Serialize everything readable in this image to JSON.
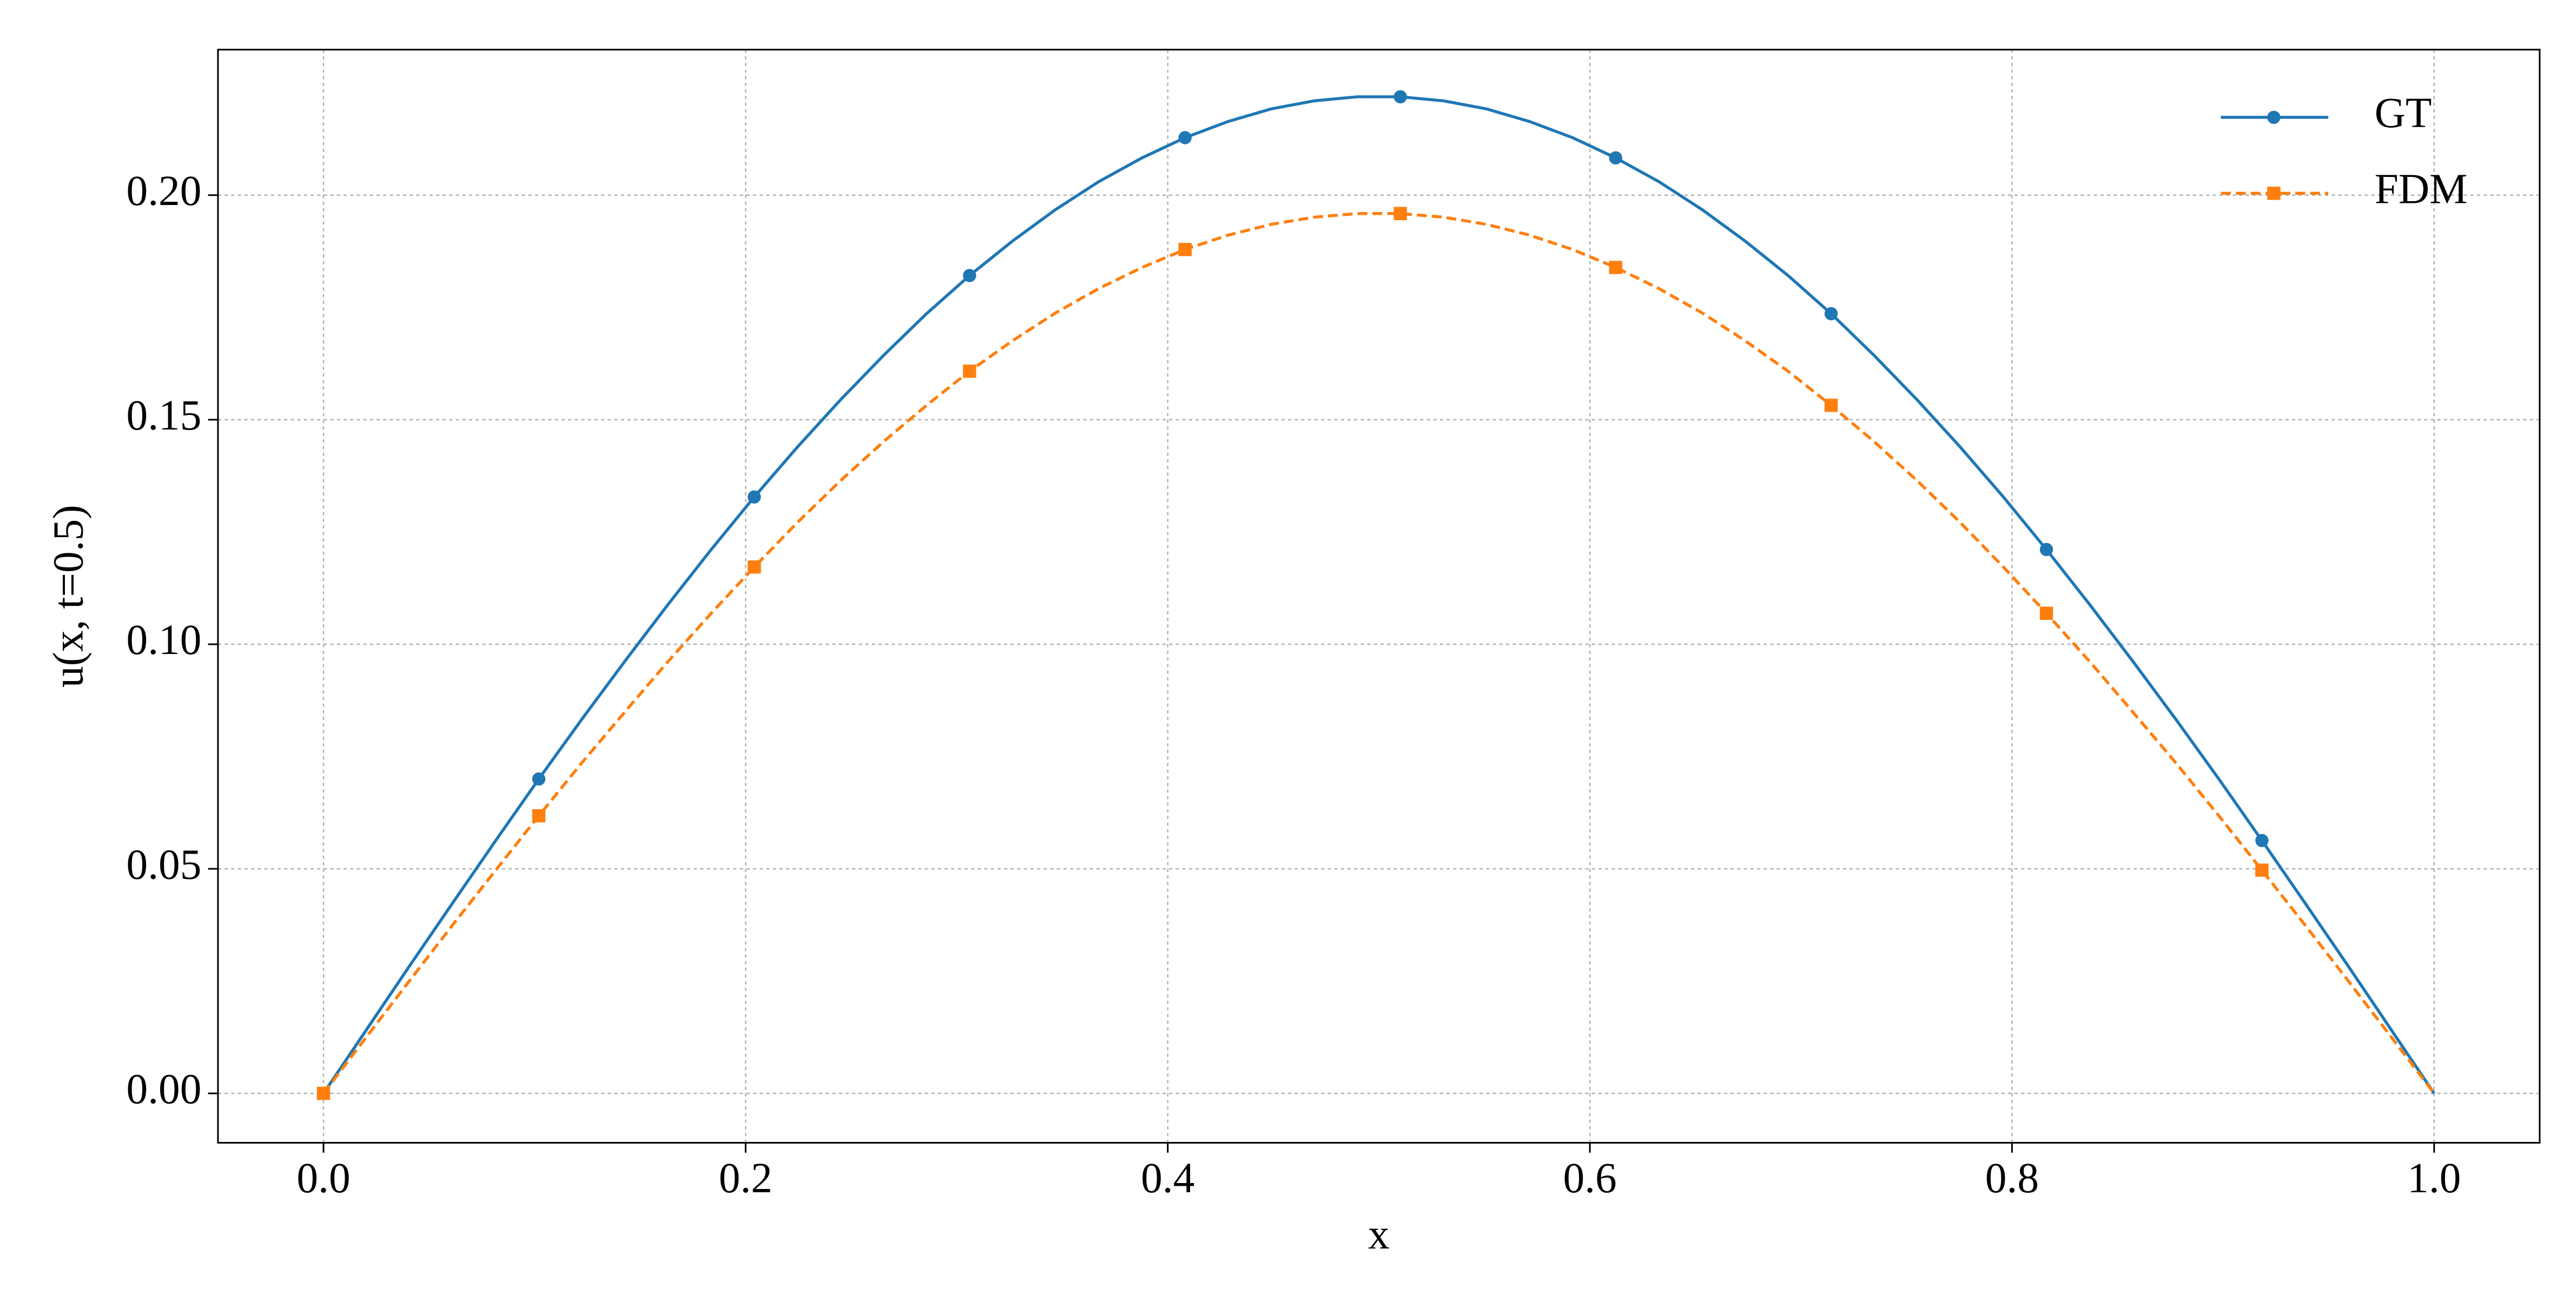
{
  "chart_data": {
    "type": "line",
    "x_label": "x",
    "y_label": "u(x, t=0.5)",
    "x": [
      0,
      0.0204,
      0.0408,
      0.0612,
      0.0816,
      0.102,
      0.1224,
      0.1429,
      0.1633,
      0.1837,
      0.2041,
      0.2245,
      0.2449,
      0.2653,
      0.2857,
      0.3061,
      0.3265,
      0.3469,
      0.3673,
      0.3878,
      0.4082,
      0.4286,
      0.449,
      0.4694,
      0.4898,
      0.5102,
      0.5306,
      0.551,
      0.5714,
      0.5918,
      0.6122,
      0.6327,
      0.6531,
      0.6735,
      0.6939,
      0.7143,
      0.7347,
      0.7551,
      0.7755,
      0.7959,
      0.8163,
      0.8367,
      0.8571,
      0.8776,
      0.898,
      0.9184,
      0.9388,
      0.9592,
      0.9796,
      1
    ],
    "series": [
      {
        "name": "GT",
        "color": "#1f77b4",
        "linestyle": "solid",
        "marker": "circle",
        "markevery": 5,
        "values": [
          0,
          0.0142,
          0.0284,
          0.0424,
          0.0563,
          0.07,
          0.0833,
          0.0963,
          0.1089,
          0.1211,
          0.1328,
          0.1439,
          0.1544,
          0.1643,
          0.1736,
          0.1821,
          0.1898,
          0.1968,
          0.203,
          0.2083,
          0.2128,
          0.2164,
          0.2192,
          0.221,
          0.2219,
          0.2219,
          0.221,
          0.2192,
          0.2164,
          0.2128,
          0.2083,
          0.203,
          0.1968,
          0.1898,
          0.1821,
          0.1736,
          0.1643,
          0.1544,
          0.1439,
          0.1328,
          0.1211,
          0.1089,
          0.0963,
          0.0833,
          0.07,
          0.0563,
          0.0424,
          0.0284,
          0.0142,
          0
        ]
      },
      {
        "name": "FDM",
        "color": "#ff7f0e",
        "linestyle": "dashed",
        "marker": "square",
        "markevery": 5,
        "values": [
          0,
          0.0126,
          0.0251,
          0.0375,
          0.0497,
          0.0618,
          0.0736,
          0.085,
          0.0962,
          0.1069,
          0.1172,
          0.1271,
          0.1364,
          0.1451,
          0.1532,
          0.1608,
          0.1676,
          0.1738,
          0.1792,
          0.1839,
          0.1879,
          0.1911,
          0.1935,
          0.1951,
          0.1959,
          0.1959,
          0.1951,
          0.1935,
          0.1911,
          0.1879,
          0.1839,
          0.1792,
          0.1738,
          0.1676,
          0.1608,
          0.1532,
          0.1451,
          0.1364,
          0.1271,
          0.1172,
          0.1069,
          0.0962,
          0.085,
          0.0736,
          0.0618,
          0.0497,
          0.0375,
          0.0251,
          0.0126,
          0
        ]
      }
    ],
    "xlim": [
      -0.05,
      1.05
    ],
    "ylim": [
      -0.011,
      0.2324
    ],
    "xticks": [
      {
        "value": 0,
        "label": "0.0"
      },
      {
        "value": 0.2,
        "label": "0.2"
      },
      {
        "value": 0.4,
        "label": "0.4"
      },
      {
        "value": 0.6,
        "label": "0.6"
      },
      {
        "value": 0.8,
        "label": "0.8"
      },
      {
        "value": 1,
        "label": "1.0"
      }
    ],
    "yticks": [
      {
        "value": 0,
        "label": "0.00"
      },
      {
        "value": 0.05,
        "label": "0.05"
      },
      {
        "value": 0.1,
        "label": "0.10"
      },
      {
        "value": 0.15,
        "label": "0.15"
      },
      {
        "value": 0.2,
        "label": "0.20"
      }
    ],
    "grid": true,
    "legend": "upper right"
  }
}
